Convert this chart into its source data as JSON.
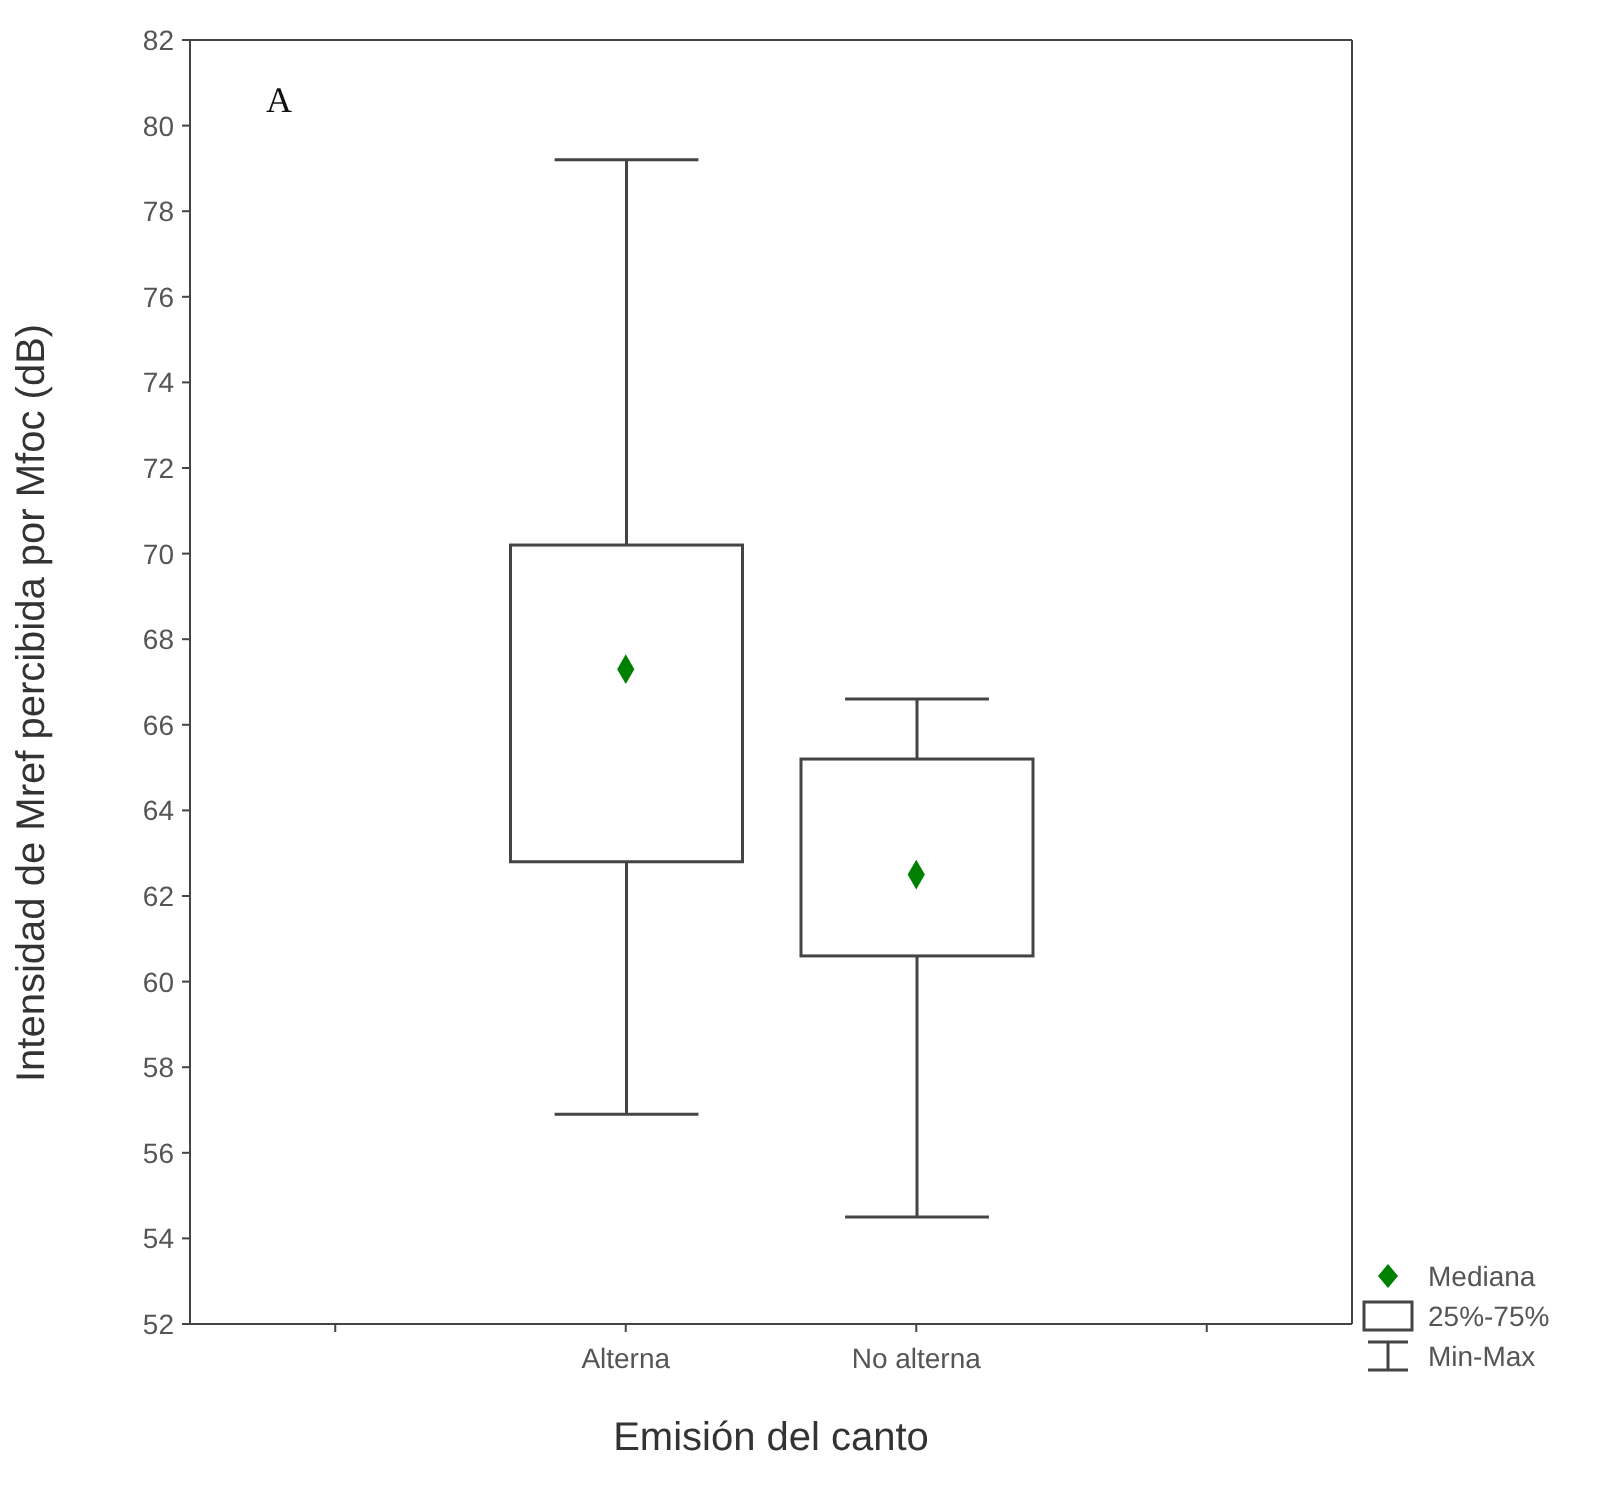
{
  "chart_data": {
    "type": "box",
    "ylabel": "Intensidad de Mref percibida por Mfoc (dB)",
    "xlabel": "Emisión del canto",
    "categories": [
      null,
      "Alterna",
      "No alterna",
      null
    ],
    "boxes": [
      null,
      {
        "low": 56.9,
        "q1": 62.8,
        "median": 67.3,
        "q3": 70.2,
        "high": 79.2
      },
      {
        "low": 54.5,
        "q1": 60.6,
        "median": 62.5,
        "q3": 65.2,
        "high": 66.6
      },
      null
    ],
    "color": "#444444",
    "ylim": [
      52,
      82
    ],
    "yticks": [
      52,
      54,
      56,
      58,
      60,
      62,
      64,
      66,
      68,
      70,
      72,
      74,
      76,
      78,
      80,
      82
    ],
    "marker": "diamond",
    "annotations": [
      "A",
      "Mediana",
      "25%-75%",
      "Min-Max"
    ]
  }
}
